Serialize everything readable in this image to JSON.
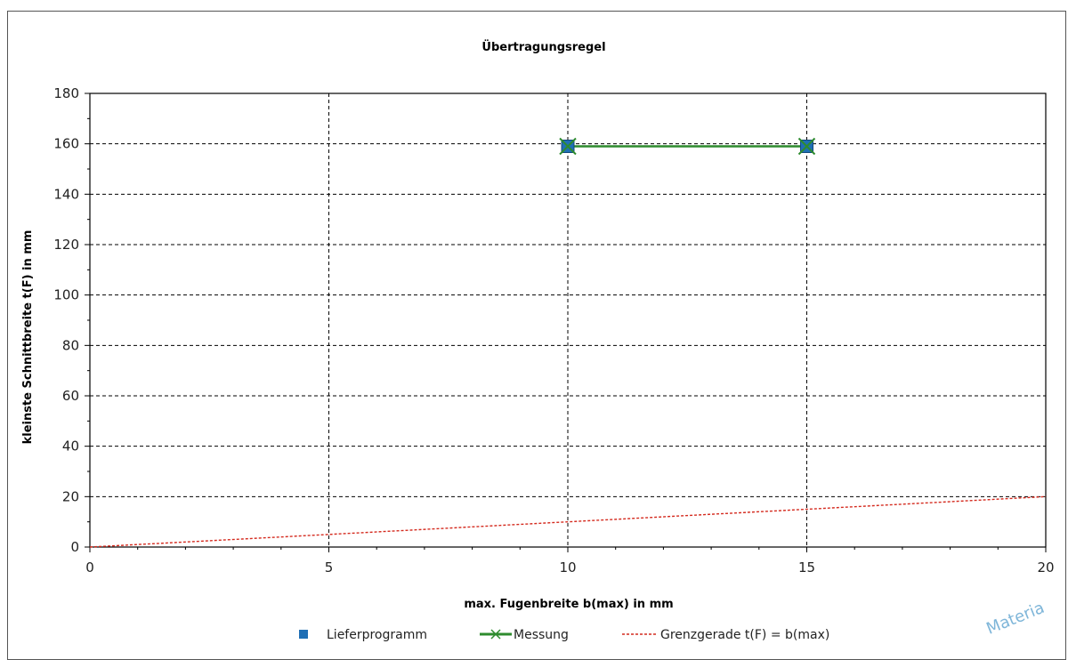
{
  "chart_data": {
    "type": "line",
    "title": "Übertragungsregel",
    "xlabel": "max. Fugenbreite b(max) in mm",
    "ylabel": "kleinste Schnittbreite t(F) in mm",
    "xlim": [
      0,
      20
    ],
    "ylim": [
      0,
      180
    ],
    "xticks": [
      0,
      5,
      10,
      15,
      20
    ],
    "yticks": [
      0,
      20,
      40,
      60,
      80,
      100,
      120,
      140,
      160,
      180
    ],
    "grid": true,
    "legend_position": "bottom",
    "series": [
      {
        "name": "Lieferprogramm",
        "kind": "markers",
        "marker": "square",
        "color": "#1f6fb5",
        "x": [
          10,
          15
        ],
        "y": [
          159,
          159
        ]
      },
      {
        "name": "Messung",
        "kind": "line-with-markers",
        "marker": "x",
        "color": "#2e8b2e",
        "x": [
          10,
          15
        ],
        "y": [
          159,
          159
        ]
      },
      {
        "name": "Grenzgerade t(F) = b(max)",
        "kind": "dashed-line",
        "color": "#d42a1e",
        "x": [
          0,
          20
        ],
        "y": [
          0,
          20
        ]
      }
    ]
  },
  "watermark": {
    "text": "Materia"
  },
  "colors": {
    "grid": "#000000",
    "plot_border": "#000000",
    "frame": "#555555"
  }
}
